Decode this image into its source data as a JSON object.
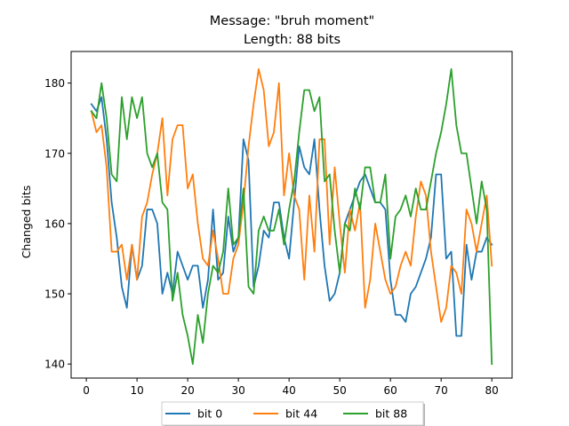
{
  "chart_data": {
    "type": "line",
    "title_lines": [
      "Message: \"bruh moment\"",
      "Length: 88 bits"
    ],
    "xlabel": "",
    "ylabel": "Changed bits",
    "xlim": [
      -3,
      84
    ],
    "ylim": [
      138,
      184.5
    ],
    "xticks": [
      0,
      10,
      20,
      30,
      40,
      50,
      60,
      70,
      80
    ],
    "yticks": [
      140,
      150,
      160,
      170,
      180
    ],
    "grid": false,
    "legend_position": "bottom-center",
    "x": [
      1,
      2,
      3,
      4,
      5,
      6,
      7,
      8,
      9,
      10,
      11,
      12,
      13,
      14,
      15,
      16,
      17,
      18,
      19,
      20,
      21,
      22,
      23,
      24,
      25,
      26,
      27,
      28,
      29,
      30,
      31,
      32,
      33,
      34,
      35,
      36,
      37,
      38,
      39,
      40,
      41,
      42,
      43,
      44,
      45,
      46,
      47,
      48,
      49,
      50,
      51,
      52,
      53,
      54,
      55,
      56,
      57,
      58,
      59,
      60,
      61,
      62,
      63,
      64,
      65,
      66,
      67,
      68,
      69,
      70,
      71,
      72,
      73,
      74,
      75,
      76,
      77,
      78,
      79,
      80
    ],
    "series": [
      {
        "name": "bit 0",
        "color": "#1f77b4",
        "values": [
          177,
          176,
          178,
          172,
          163,
          158,
          151,
          148,
          157,
          152,
          154,
          162,
          162,
          160,
          150,
          153,
          150,
          156,
          154,
          152,
          154,
          154,
          148,
          152,
          162,
          152,
          153,
          161,
          156,
          158,
          172,
          169,
          151,
          154,
          159,
          158,
          163,
          163,
          158,
          155,
          163,
          171,
          168,
          167,
          172,
          162,
          154,
          149,
          150,
          153,
          160,
          162,
          164,
          166,
          167,
          165,
          163,
          163,
          162,
          152,
          147,
          147,
          146,
          150,
          151,
          153,
          155,
          158,
          167,
          167,
          155,
          156,
          144,
          144,
          157,
          152,
          156,
          156,
          158,
          157
        ],
        "legend_label": "bit 0"
      },
      {
        "name": "bit 44",
        "color": "#ff7f0e",
        "values": [
          176,
          173,
          174,
          168,
          156,
          156,
          157,
          152,
          157,
          152,
          161,
          163,
          167,
          170,
          175,
          164,
          172,
          174,
          174,
          165,
          167,
          160,
          155,
          154,
          159,
          155,
          150,
          150,
          155,
          157,
          163,
          171,
          177,
          182,
          179,
          171,
          173,
          180,
          164,
          170,
          164,
          162,
          152,
          164,
          156,
          172,
          172,
          157,
          168,
          160,
          153,
          162,
          159,
          163,
          148,
          152,
          160,
          156,
          152,
          150,
          151,
          154,
          156,
          154,
          161,
          166,
          164,
          156,
          151,
          146,
          148,
          154,
          153,
          150,
          162,
          160,
          156,
          160,
          164,
          154
        ],
        "legend_label": "bit 44"
      },
      {
        "name": "bit 88",
        "color": "#2ca02c",
        "values": [
          176,
          175,
          180,
          175,
          167,
          166,
          178,
          172,
          178,
          175,
          178,
          170,
          168,
          170,
          163,
          162,
          149,
          153,
          147,
          144,
          140,
          147,
          143,
          150,
          154,
          153,
          156,
          165,
          157,
          158,
          165,
          151,
          150,
          159,
          161,
          159,
          159,
          162,
          157,
          162,
          166,
          173,
          179,
          179,
          176,
          178,
          166,
          167,
          159,
          153,
          160,
          159,
          165,
          162,
          168,
          168,
          163,
          163,
          167,
          155,
          161,
          162,
          164,
          161,
          165,
          162,
          162,
          166,
          170,
          173,
          177,
          182,
          174,
          170,
          170,
          165,
          160,
          166,
          162,
          140
        ],
        "legend_label": "bit 88"
      }
    ]
  }
}
